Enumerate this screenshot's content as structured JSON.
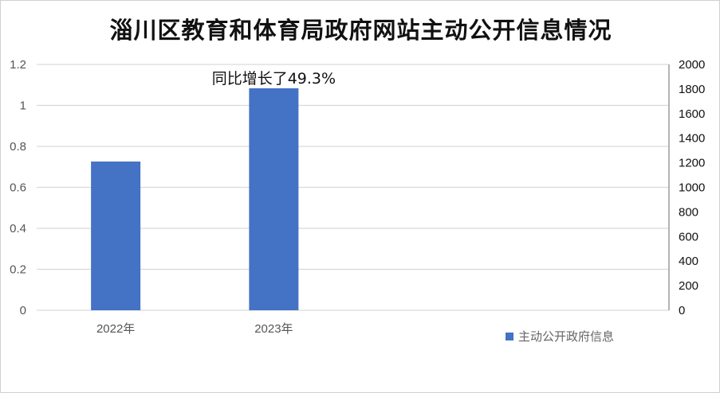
{
  "chart_data": {
    "type": "bar",
    "title": "淄川区教育和体育局政府网站主动公开信息情况",
    "categories": [
      "2022年",
      "2023年"
    ],
    "series": [
      {
        "name": "主动公开政府信息",
        "values": [
          1210,
          1806
        ],
        "color": "#4472C4",
        "axis": "right"
      }
    ],
    "left_axis": {
      "ylim": [
        0,
        1.2
      ],
      "ticks": [
        "0",
        "0.2",
        "0.4",
        "0.6",
        "0.8",
        "1",
        "1.2"
      ]
    },
    "right_axis": {
      "ylim": [
        0,
        2000
      ],
      "ticks": [
        "0",
        "200",
        "400",
        "600",
        "800",
        "1000",
        "1200",
        "1400",
        "1600",
        "1800",
        "2000"
      ]
    },
    "annotations": [
      {
        "category": "2023年",
        "text": "同比增长了49.3%"
      }
    ],
    "grid": true,
    "legend_position": "bottom-right"
  }
}
